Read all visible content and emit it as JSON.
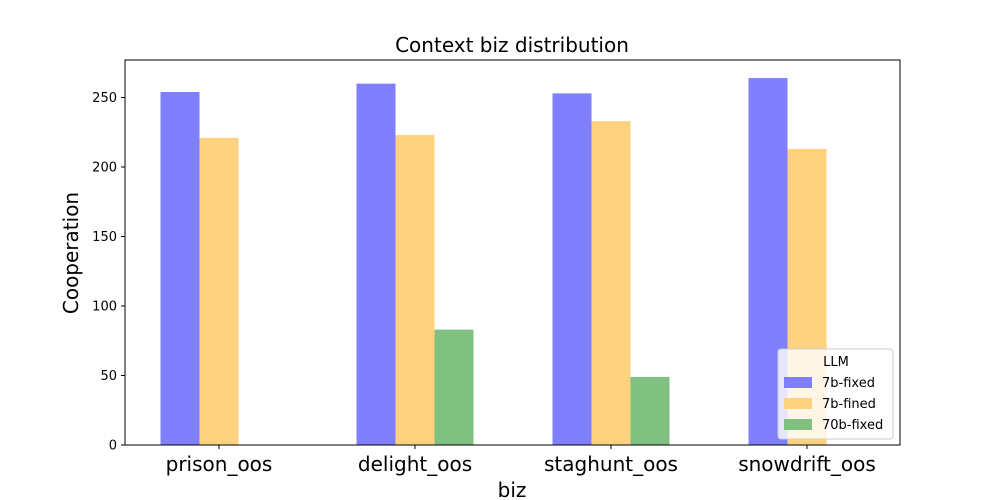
{
  "chart_data": {
    "type": "bar",
    "title": "Context biz distribution",
    "xlabel": "biz",
    "ylabel": "Cooperation",
    "categories": [
      "prison_oos",
      "delight_oos",
      "staghunt_oos",
      "snowdrift_oos"
    ],
    "series": [
      {
        "name": "7b-fixed",
        "color": "#8080ff",
        "values": [
          254,
          260,
          253,
          264
        ]
      },
      {
        "name": "7b-fined",
        "color": "#ffd280",
        "values": [
          221,
          223,
          233,
          213
        ]
      },
      {
        "name": "70b-fixed",
        "color": "#80c080",
        "values": [
          0,
          83,
          49,
          0
        ]
      }
    ],
    "yticks": [
      0,
      50,
      100,
      150,
      200,
      250
    ],
    "ylim": [
      0,
      277
    ],
    "legend": {
      "title": "LLM",
      "placement": "lower-right"
    },
    "grid": false
  }
}
